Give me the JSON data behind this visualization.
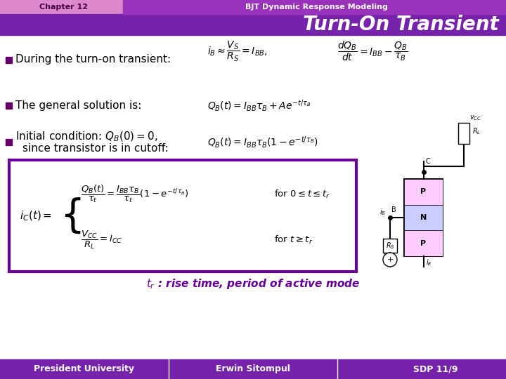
{
  "header_left_text": "Chapter 12",
  "header_right_text": "BJT Dynamic Response Modeling",
  "header_bg_color": "#cc66cc",
  "header_right_bg_color": "#9933cc",
  "title_text": "Turn-On Transient",
  "title_bg_color": "#7722aa",
  "title_text_color": "#ffffff",
  "slide_bg_color": "#ffffff",
  "bullet_color": "#660066",
  "bullet1_text": "During the turn-on transient:",
  "bullet2_text": "The general solution is:",
  "bullet3_line1": "Initial condition: $Q_B(0)=0$,",
  "bullet3_line2": "since transistor is in cutoff:",
  "eq1a": "$i_B \\approx \\dfrac{V_S}{R_S} = I_{BB},$",
  "eq1b": "$\\dfrac{dQ_B}{dt} = I_{BB} - \\dfrac{Q_B}{\\tau_B}$",
  "eq2": "$Q_B(t) = I_{BB}\\tau_B + Ae^{-t/\\tau_B}$",
  "eq3": "$Q_B(t) = I_{BB}\\tau_B\\left(1 - e^{-t/\\tau_B}\\right)$",
  "box_border_color": "#660099",
  "ic_label": "$i_C(t) =$",
  "brace_expr": "",
  "eq_box_line1a": "$\\dfrac{Q_B(t)}{\\tau_t} = \\dfrac{I_{BB}\\tau_B}{\\tau_t}\\left(1 - e^{-t/\\tau_B}\\right)$",
  "eq_box_line1b": "for $0 \\leq t \\leq t_r$",
  "eq_box_line2a": "$\\dfrac{V_{CC}}{R_L} = I_{CC}$",
  "eq_box_line2b": "for $t \\geq t_r$",
  "footer_annotation": "$t_r$ : rise time, period of active mode",
  "footer_annotation_color": "#660099",
  "footer_left": "President University",
  "footer_center": "Erwin Sitompul",
  "footer_right": "SDP 11/9",
  "footer_bg_color": "#7722aa",
  "footer_text_color": "#ffffff"
}
